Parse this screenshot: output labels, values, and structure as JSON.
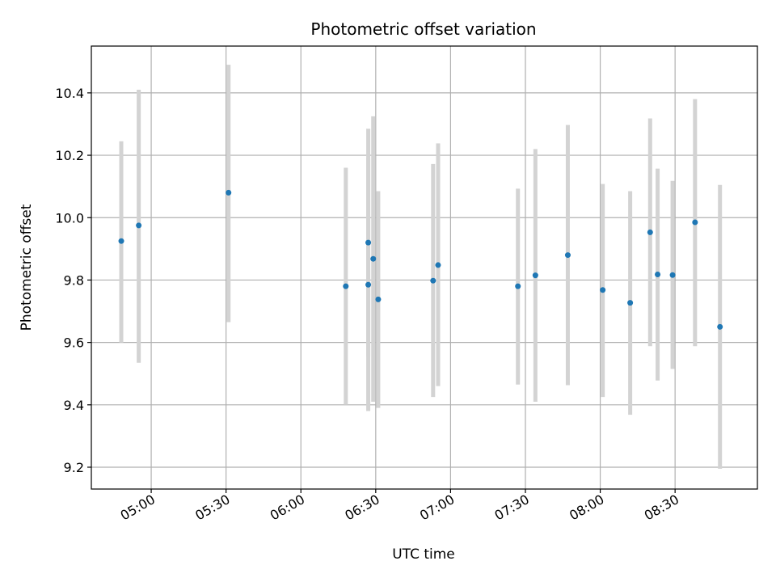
{
  "chart_data": {
    "type": "scatter",
    "title": "Photometric offset variation",
    "xlabel": "UTC time",
    "ylabel": "Photometric offset",
    "x_axis_type": "time",
    "xlim": [
      "04:36",
      "09:03"
    ],
    "ylim": [
      9.13,
      10.55
    ],
    "x_ticks": [
      "05:00",
      "05:30",
      "06:00",
      "06:30",
      "07:00",
      "07:30",
      "08:00",
      "08:30"
    ],
    "y_ticks": [
      9.2,
      9.4,
      9.6,
      9.8,
      10.0,
      10.2,
      10.4
    ],
    "grid": true,
    "marker_color": "#1f77b4",
    "errorbar_color": "#d3d3d3",
    "points": [
      {
        "x": "04:48",
        "y": 9.925,
        "low": 9.6,
        "high": 10.245
      },
      {
        "x": "04:55",
        "y": 9.975,
        "low": 9.535,
        "high": 10.41
      },
      {
        "x": "05:31",
        "y": 10.08,
        "low": 9.665,
        "high": 10.49
      },
      {
        "x": "06:18",
        "y": 9.78,
        "low": 9.4,
        "high": 10.16
      },
      {
        "x": "06:27",
        "y": 9.785,
        "low": 9.38,
        "high": 10.19
      },
      {
        "x": "06:27",
        "y": 9.92,
        "low": 9.555,
        "high": 10.285
      },
      {
        "x": "06:29",
        "y": 9.868,
        "low": 9.41,
        "high": 10.325
      },
      {
        "x": "06:31",
        "y": 9.738,
        "low": 9.39,
        "high": 10.085
      },
      {
        "x": "06:53",
        "y": 9.798,
        "low": 9.425,
        "high": 10.172
      },
      {
        "x": "06:55",
        "y": 9.848,
        "low": 9.46,
        "high": 10.238
      },
      {
        "x": "07:27",
        "y": 9.78,
        "low": 9.465,
        "high": 10.093
      },
      {
        "x": "07:34",
        "y": 9.815,
        "low": 9.41,
        "high": 10.22
      },
      {
        "x": "07:47",
        "y": 9.88,
        "low": 9.463,
        "high": 10.297
      },
      {
        "x": "08:01",
        "y": 9.768,
        "low": 9.425,
        "high": 10.108
      },
      {
        "x": "08:12",
        "y": 9.727,
        "low": 9.368,
        "high": 10.085
      },
      {
        "x": "08:20",
        "y": 9.953,
        "low": 9.588,
        "high": 10.318
      },
      {
        "x": "08:23",
        "y": 9.818,
        "low": 9.478,
        "high": 10.157
      },
      {
        "x": "08:29",
        "y": 9.816,
        "low": 9.515,
        "high": 10.118
      },
      {
        "x": "08:38",
        "y": 9.985,
        "low": 9.588,
        "high": 10.38
      },
      {
        "x": "08:48",
        "y": 9.65,
        "low": 9.195,
        "high": 10.105
      }
    ]
  }
}
